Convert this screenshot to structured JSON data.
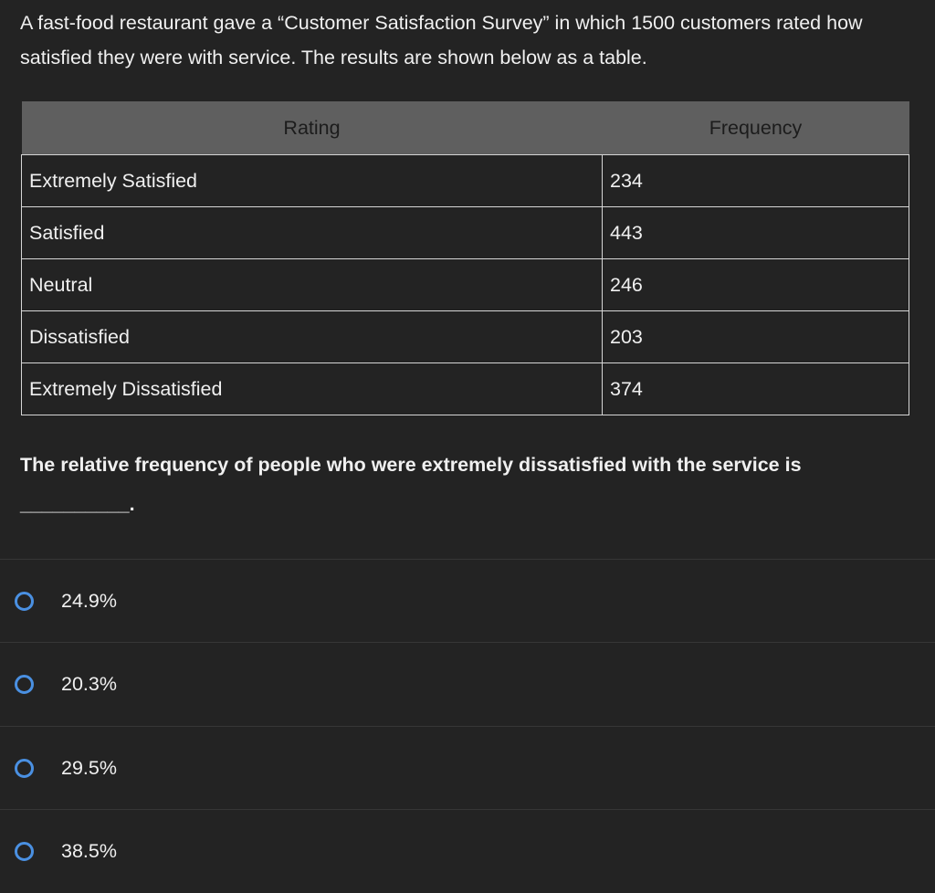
{
  "intro": "A fast-food restaurant gave a “Customer Satisfaction Survey” in which 1500 customers rated how satisfied they were with service. The results are shown below as a table.",
  "table": {
    "headers": [
      "Rating",
      "Frequency"
    ],
    "rows": [
      {
        "rating": "Extremely Satisfied",
        "frequency": "234"
      },
      {
        "rating": "Satisfied",
        "frequency": "443"
      },
      {
        "rating": "Neutral",
        "frequency": "246"
      },
      {
        "rating": "Dissatisfied",
        "frequency": "203"
      },
      {
        "rating": "Extremely Dissatisfied",
        "frequency": "374"
      }
    ]
  },
  "question": "The relative frequency of people who were extremely dissatisfied with the service is",
  "blank": "__________.",
  "options": [
    {
      "label": "24.9%"
    },
    {
      "label": "20.3%"
    },
    {
      "label": "29.5%"
    },
    {
      "label": "38.5%"
    }
  ],
  "colors": {
    "background": "#232323",
    "header_bg": "#5f5f5f",
    "radio_accent": "#4a90e2"
  }
}
